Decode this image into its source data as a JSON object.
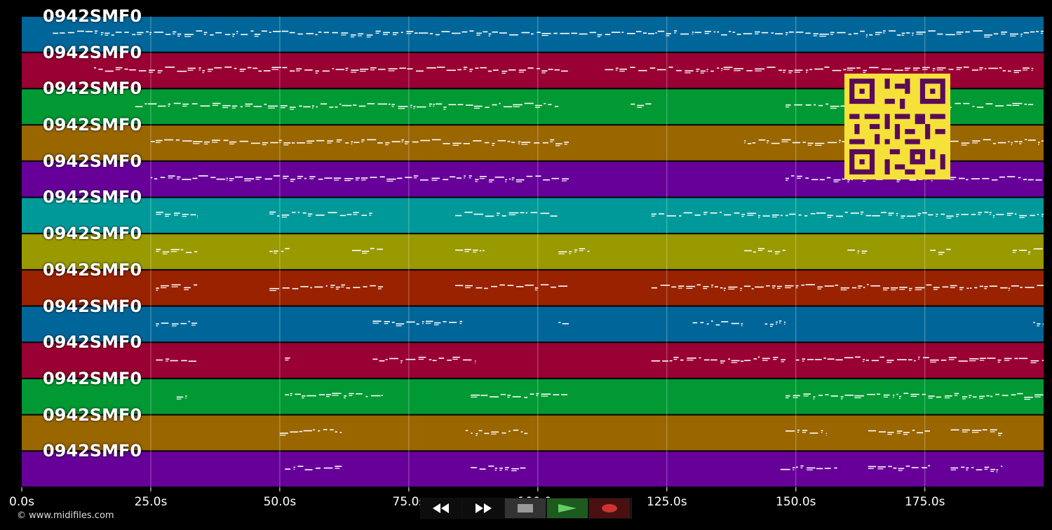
{
  "timeline": {
    "max_seconds": 198,
    "ticks": [
      {
        "t": 0,
        "label": "0.0s"
      },
      {
        "t": 25,
        "label": "25.0s"
      },
      {
        "t": 50,
        "label": "50.0s"
      },
      {
        "t": 75,
        "label": "75.0s"
      },
      {
        "t": 100,
        "label": "100.0s"
      },
      {
        "t": 125,
        "label": "125.0s"
      },
      {
        "t": 150,
        "label": "150.0s"
      },
      {
        "t": 175,
        "label": "175.0s"
      }
    ]
  },
  "tracks": [
    {
      "name": "0942SMF0",
      "color": "#006699",
      "segments": [
        [
          6,
          198
        ]
      ]
    },
    {
      "name": "0942SMF0",
      "color": "#990033",
      "segments": [
        [
          14,
          106
        ],
        [
          113,
          196
        ]
      ]
    },
    {
      "name": "0942SMF0",
      "color": "#009933",
      "segments": [
        [
          22,
          104
        ],
        [
          118,
          122
        ],
        [
          148,
          196
        ]
      ]
    },
    {
      "name": "0942SMF0",
      "color": "#996600",
      "segments": [
        [
          25,
          106
        ],
        [
          140,
          198
        ]
      ]
    },
    {
      "name": "0942SMF0",
      "color": "#660099",
      "segments": [
        [
          25,
          106
        ],
        [
          148,
          198
        ]
      ]
    },
    {
      "name": "0942SMF0",
      "color": "#009999",
      "segments": [
        [
          26,
          34
        ],
        [
          48,
          68
        ],
        [
          84,
          104
        ],
        [
          122,
          198
        ]
      ]
    },
    {
      "name": "0942SMF0",
      "color": "#999900",
      "segments": [
        [
          26,
          34
        ],
        [
          48,
          52
        ],
        [
          64,
          70
        ],
        [
          84,
          90
        ],
        [
          104,
          110
        ],
        [
          140,
          148
        ],
        [
          160,
          164
        ],
        [
          176,
          180
        ],
        [
          192,
          198
        ]
      ]
    },
    {
      "name": "0942SMF0",
      "color": "#992200",
      "segments": [
        [
          26,
          34
        ],
        [
          48,
          70
        ],
        [
          84,
          106
        ],
        [
          122,
          198
        ]
      ]
    },
    {
      "name": "0942SMF0",
      "color": "#006699",
      "segments": [
        [
          26,
          34
        ],
        [
          68,
          86
        ],
        [
          104,
          106
        ],
        [
          130,
          140
        ],
        [
          144,
          148
        ],
        [
          196,
          198
        ]
      ]
    },
    {
      "name": "0942SMF0",
      "color": "#990033",
      "segments": [
        [
          26,
          34
        ],
        [
          51,
          52
        ],
        [
          68,
          88
        ],
        [
          122,
          140
        ],
        [
          140,
          148
        ],
        [
          150,
          198
        ]
      ]
    },
    {
      "name": "0942SMF0",
      "color": "#009933",
      "segments": [
        [
          30,
          32
        ],
        [
          51,
          70
        ],
        [
          87,
          106
        ],
        [
          148,
          198
        ]
      ]
    },
    {
      "name": "0942SMF0",
      "color": "#996600",
      "segments": [
        [
          50,
          62
        ],
        [
          86,
          98
        ],
        [
          148,
          156
        ],
        [
          164,
          176
        ],
        [
          180,
          190
        ]
      ]
    },
    {
      "name": "0942SMF0",
      "color": "#660099",
      "segments": [
        [
          51,
          62
        ],
        [
          87,
          98
        ],
        [
          147,
          158
        ],
        [
          164,
          176
        ],
        [
          180,
          190
        ]
      ]
    }
  ],
  "transport": {
    "rewind": "rewind-icon",
    "forward": "fast-forward-icon",
    "stop": "stop-icon",
    "play": "play-icon",
    "record": "record-icon",
    "play_color": "#66cc66",
    "record_color": "#cc3333"
  },
  "footer": {
    "copyright": "© www.midifiles.com"
  }
}
